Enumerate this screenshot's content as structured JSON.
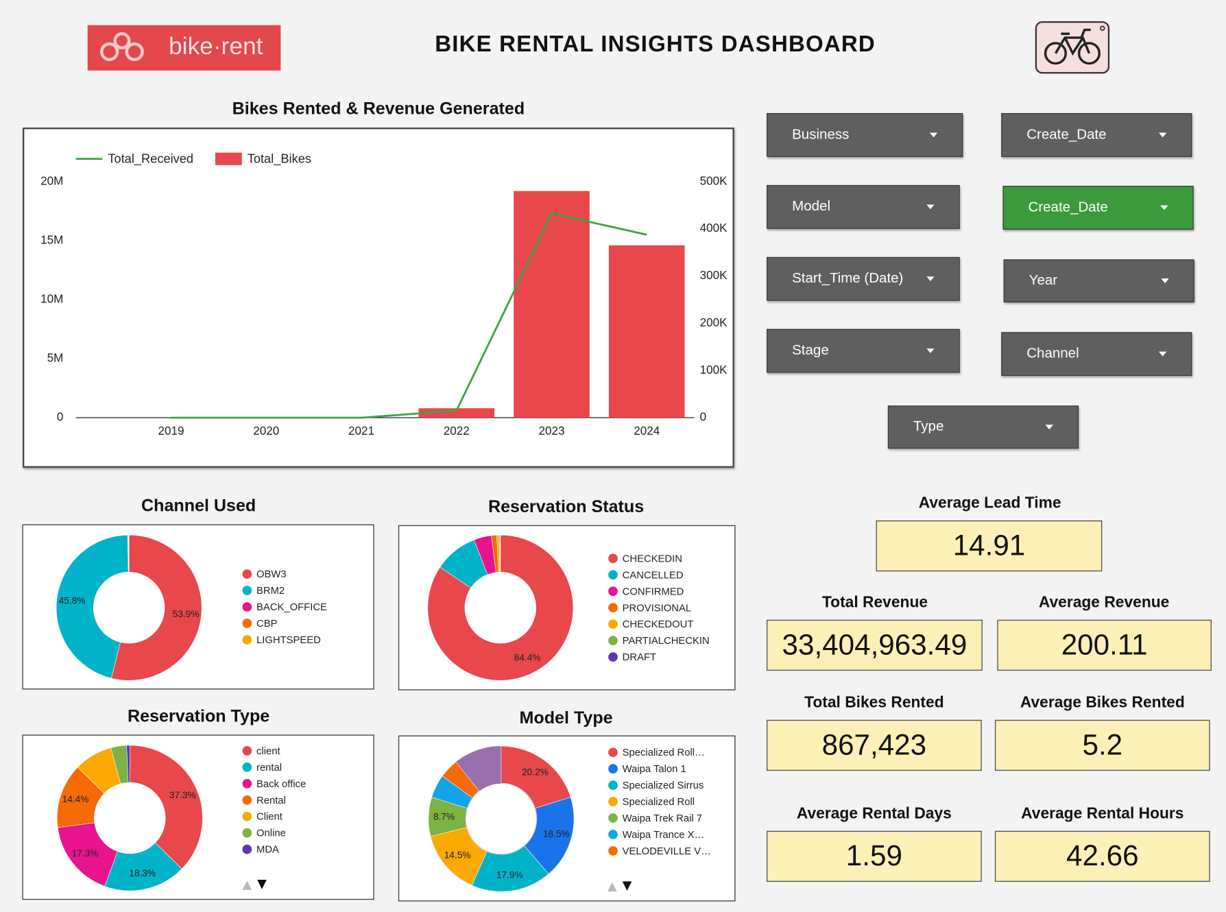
{
  "header": {
    "logo_text": "bike·rent",
    "title": "BIKE RENTAL INSIGHTS DASHBOARD"
  },
  "filters": [
    {
      "label": "Business",
      "color": "#5f5f5f"
    },
    {
      "label": "Create_Date",
      "color": "#5f5f5f"
    },
    {
      "label": "Model",
      "color": "#5f5f5f"
    },
    {
      "label": "Create_Date",
      "color": "#3b9a3b"
    },
    {
      "label": "Start_Time (Date)",
      "color": "#5f5f5f"
    },
    {
      "label": "Year",
      "color": "#5f5f5f"
    },
    {
      "label": "Stage",
      "color": "#5f5f5f"
    },
    {
      "label": "Channel",
      "color": "#5f5f5f"
    },
    {
      "label": "Type",
      "color": "#5f5f5f"
    }
  ],
  "kpis": [
    {
      "label": "Average Lead Time",
      "value": "14.91"
    },
    {
      "label": "Total Revenue",
      "value": "33,404,963.49"
    },
    {
      "label": "Average Revenue",
      "value": "200.11"
    },
    {
      "label": "Total Bikes Rented",
      "value": "867,423"
    },
    {
      "label": "Average Bikes Rented",
      "value": "5.2"
    },
    {
      "label": "Average Rental Days",
      "value": "1.59"
    },
    {
      "label": "Average Rental Hours",
      "value": "42.66"
    }
  ],
  "chart_data": [
    {
      "type": "combo",
      "title": "Bikes Rented & Revenue Generated",
      "categories": [
        "2019",
        "2020",
        "2021",
        "2022",
        "2023",
        "2024"
      ],
      "series": [
        {
          "name": "Total_Received",
          "type": "line",
          "color": "#43a047",
          "values": [
            0,
            0,
            0,
            600000,
            17300000,
            15500000
          ]
        },
        {
          "name": "Total_Bikes",
          "type": "bar",
          "axis": "y2",
          "color": "#e8474c",
          "values": [
            0,
            0,
            0,
            20000,
            480000,
            365000
          ]
        }
      ],
      "ylim": [
        0,
        20000000
      ],
      "yticks": [
        0,
        {
          "value": 5000000,
          "label": "5M"
        },
        {
          "value": 10000000,
          "label": "10M"
        },
        {
          "value": 15000000,
          "label": "15M"
        },
        {
          "value": 20000000,
          "label": "20M"
        }
      ],
      "y2lim": [
        0,
        500000
      ],
      "y2ticks": [
        0,
        {
          "value": 100000,
          "label": "100K"
        },
        {
          "value": 200000,
          "label": "200K"
        },
        {
          "value": 300000,
          "label": "300K"
        },
        {
          "value": 400000,
          "label": "400K"
        },
        {
          "value": 500000,
          "label": "500K"
        }
      ],
      "legend": "top-left"
    },
    {
      "type": "donut",
      "title": "Channel Used",
      "categories": [
        "OBW3",
        "BRM2",
        "BACK_OFFICE",
        "CBP",
        "LIGHTSPEED"
      ],
      "values": [
        53.9,
        45.8,
        0.1,
        0.1,
        0.1
      ],
      "value_labels": [
        "53.9%",
        "45.8%",
        null,
        null,
        null
      ],
      "colors": [
        "#e8474c",
        "#00b3c8",
        "#e8138d",
        "#f76a07",
        "#fba800"
      ]
    },
    {
      "type": "donut",
      "title": "Reservation Status",
      "categories": [
        "CHECKEDIN",
        "CANCELLED",
        "CONFIRMED",
        "PROVISIONAL",
        "CHECKEDOUT",
        "PARTIALCHECKIN",
        "DRAFT"
      ],
      "values": [
        84.4,
        9.7,
        3.9,
        1.2,
        0.5,
        0.2,
        0.1
      ],
      "value_labels": [
        "84.4%",
        null,
        null,
        null,
        null,
        null,
        null
      ],
      "colors": [
        "#e8474c",
        "#00b3c8",
        "#e8138d",
        "#f76a07",
        "#fba800",
        "#7cb342",
        "#5e35b1"
      ]
    },
    {
      "type": "donut",
      "title": "Reservation Type",
      "categories": [
        "client",
        "rental",
        "Back office",
        "Rental",
        "Client",
        "Online",
        "MDA"
      ],
      "values": [
        37.3,
        18.3,
        17.3,
        14.4,
        8.5,
        3.5,
        0.7
      ],
      "value_labels": [
        "37.3%",
        "18.3%",
        "17.3%",
        "14.4%",
        null,
        null,
        null
      ],
      "colors": [
        "#e8474c",
        "#00b3c8",
        "#e8138d",
        "#f76a07",
        "#fba800",
        "#7cb342",
        "#5e35b1"
      ]
    },
    {
      "type": "donut",
      "title": "Model Type",
      "categories": [
        "Specialized Roll…",
        "Waipa Talon 1",
        "Specialized Sirrus",
        "Specialized Roll",
        "Waipa Trek Rail 7",
        "Waipa Trance X…",
        "VELODEVILLE V…"
      ],
      "values": [
        20.2,
        18.5,
        17.9,
        14.5,
        8.7,
        5.2,
        4.3
      ],
      "value_labels": [
        "20.2%",
        "18.5%",
        "17.9%",
        "14.5%",
        "8.7%",
        null,
        null
      ],
      "colors": [
        "#e8474c",
        "#1a73e8",
        "#00b3c8",
        "#fba800",
        "#7cb342",
        "#12a4e8",
        "#f76a07"
      ]
    }
  ]
}
